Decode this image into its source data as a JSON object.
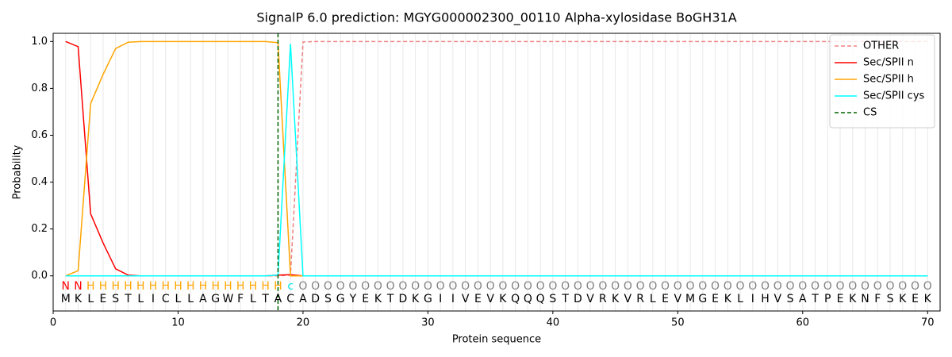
{
  "chart_data": {
    "type": "line",
    "title": "SignalP 6.0 prediction: MGYG000002300_00110 Alpha-xylosidase BoGH31A",
    "xlabel": "Protein sequence",
    "ylabel": "Probability",
    "xlim": [
      0,
      71
    ],
    "ylim": [
      -0.15,
      1.035
    ],
    "xticks": [
      0,
      10,
      20,
      30,
      40,
      50,
      60,
      70
    ],
    "yticks": [
      {
        "value": 0,
        "label": "0.0"
      },
      {
        "value": 0.2,
        "label": "0.2"
      },
      {
        "value": 0.4,
        "label": "0.4"
      },
      {
        "value": 0.6,
        "label": "0.6"
      },
      {
        "value": 0.8,
        "label": "0.8"
      },
      {
        "value": 1,
        "label": "1.0"
      }
    ],
    "legend": "upper right",
    "x": [
      1,
      2,
      3,
      4,
      5,
      6,
      7,
      8,
      9,
      10,
      11,
      12,
      13,
      14,
      15,
      16,
      17,
      18,
      19,
      20,
      21,
      22,
      23,
      24,
      25,
      26,
      27,
      28,
      29,
      30,
      31,
      32,
      33,
      34,
      35,
      36,
      37,
      38,
      39,
      40,
      41,
      42,
      43,
      44,
      45,
      46,
      47,
      48,
      49,
      50,
      51,
      52,
      53,
      54,
      55,
      56,
      57,
      58,
      59,
      60,
      61,
      62,
      63,
      64,
      65,
      66,
      67,
      68,
      69,
      70
    ],
    "sequence": [
      "M",
      "K",
      "L",
      "E",
      "S",
      "T",
      "L",
      "I",
      "C",
      "L",
      "L",
      "A",
      "G",
      "W",
      "F",
      "L",
      "T",
      "A",
      "C",
      "A",
      "D",
      "S",
      "G",
      "Y",
      "E",
      "K",
      "T",
      "D",
      "K",
      "G",
      "I",
      "I",
      "V",
      "E",
      "V",
      "K",
      "Q",
      "Q",
      "Q",
      "S",
      "T",
      "D",
      "V",
      "R",
      "K",
      "V",
      "R",
      "L",
      "E",
      "V",
      "M",
      "G",
      "E",
      "K",
      "L",
      "I",
      "H",
      "V",
      "S",
      "A",
      "T",
      "P",
      "E",
      "K",
      "N",
      "F",
      "S",
      "K",
      "E",
      "K"
    ],
    "labels": [
      "N",
      "N",
      "H",
      "H",
      "H",
      "H",
      "H",
      "H",
      "H",
      "H",
      "H",
      "H",
      "H",
      "H",
      "H",
      "H",
      "H",
      "H",
      "c",
      "O",
      "O",
      "O",
      "O",
      "O",
      "O",
      "O",
      "O",
      "O",
      "O",
      "O",
      "O",
      "O",
      "O",
      "O",
      "O",
      "O",
      "O",
      "O",
      "O",
      "O",
      "O",
      "O",
      "O",
      "O",
      "O",
      "O",
      "O",
      "O",
      "O",
      "O",
      "O",
      "O",
      "O",
      "O",
      "O",
      "O",
      "O",
      "O",
      "O",
      "O",
      "O",
      "O",
      "O",
      "O",
      "O",
      "O",
      "O",
      "O",
      "O",
      "O"
    ],
    "label_colors": {
      "N": "#ff0000",
      "H": "#ffa500",
      "c": "#00e5e5",
      "O": "#808080"
    },
    "series": [
      {
        "name": "OTHER",
        "color": "#f08080",
        "dashed": true,
        "values": [
          0,
          0,
          0,
          0,
          0,
          0,
          0,
          0,
          0,
          0,
          0,
          0,
          0,
          0,
          0,
          0,
          0,
          0,
          0.003,
          0.998,
          1,
          1,
          1,
          1,
          1,
          1,
          1,
          1,
          1,
          1,
          1,
          1,
          1,
          1,
          1,
          1,
          1,
          1,
          1,
          1,
          1,
          1,
          1,
          1,
          1,
          1,
          1,
          1,
          1,
          1,
          1,
          1,
          1,
          1,
          1,
          1,
          1,
          1,
          1,
          1,
          1,
          1,
          1,
          1,
          1,
          1,
          1,
          1,
          1,
          1
        ]
      },
      {
        "name": "Sec/SPII n",
        "color": "#ff0000",
        "dashed": false,
        "values": [
          1,
          0.978,
          0.265,
          0.14,
          0.03,
          0.003,
          0,
          0,
          0,
          0,
          0,
          0,
          0,
          0,
          0,
          0,
          0,
          0.003,
          0.005,
          0,
          0,
          0,
          0,
          0,
          0,
          0,
          0,
          0,
          0,
          0,
          0,
          0,
          0,
          0,
          0,
          0,
          0,
          0,
          0,
          0,
          0,
          0,
          0,
          0,
          0,
          0,
          0,
          0,
          0,
          0,
          0,
          0,
          0,
          0,
          0,
          0,
          0,
          0,
          0,
          0,
          0,
          0,
          0,
          0,
          0,
          0,
          0,
          0,
          0,
          0
        ]
      },
      {
        "name": "Sec/SPII h",
        "color": "#ffa500",
        "dashed": false,
        "values": [
          0,
          0.022,
          0.735,
          0.86,
          0.97,
          0.997,
          1,
          1,
          1,
          1,
          1,
          1,
          1,
          1,
          1,
          1,
          1,
          0.995,
          0,
          0,
          0,
          0,
          0,
          0,
          0,
          0,
          0,
          0,
          0,
          0,
          0,
          0,
          0,
          0,
          0,
          0,
          0,
          0,
          0,
          0,
          0,
          0,
          0,
          0,
          0,
          0,
          0,
          0,
          0,
          0,
          0,
          0,
          0,
          0,
          0,
          0,
          0,
          0,
          0,
          0,
          0,
          0,
          0,
          0,
          0,
          0,
          0,
          0,
          0,
          0
        ]
      },
      {
        "name": "Sec/SPII cys",
        "color": "#00ffff",
        "dashed": false,
        "values": [
          0,
          0,
          0,
          0,
          0,
          0,
          0,
          0,
          0,
          0,
          0,
          0,
          0,
          0,
          0,
          0,
          0,
          0.003,
          0.99,
          0,
          0,
          0,
          0,
          0,
          0,
          0,
          0,
          0,
          0,
          0,
          0,
          0,
          0,
          0,
          0,
          0,
          0,
          0,
          0,
          0,
          0,
          0,
          0,
          0,
          0,
          0,
          0,
          0,
          0,
          0,
          0,
          0,
          0,
          0,
          0,
          0,
          0,
          0,
          0,
          0,
          0,
          0,
          0,
          0,
          0,
          0,
          0,
          0,
          0,
          0
        ]
      }
    ],
    "cs": {
      "name": "CS",
      "color": "#006400",
      "dashed": true,
      "x": 18
    }
  }
}
